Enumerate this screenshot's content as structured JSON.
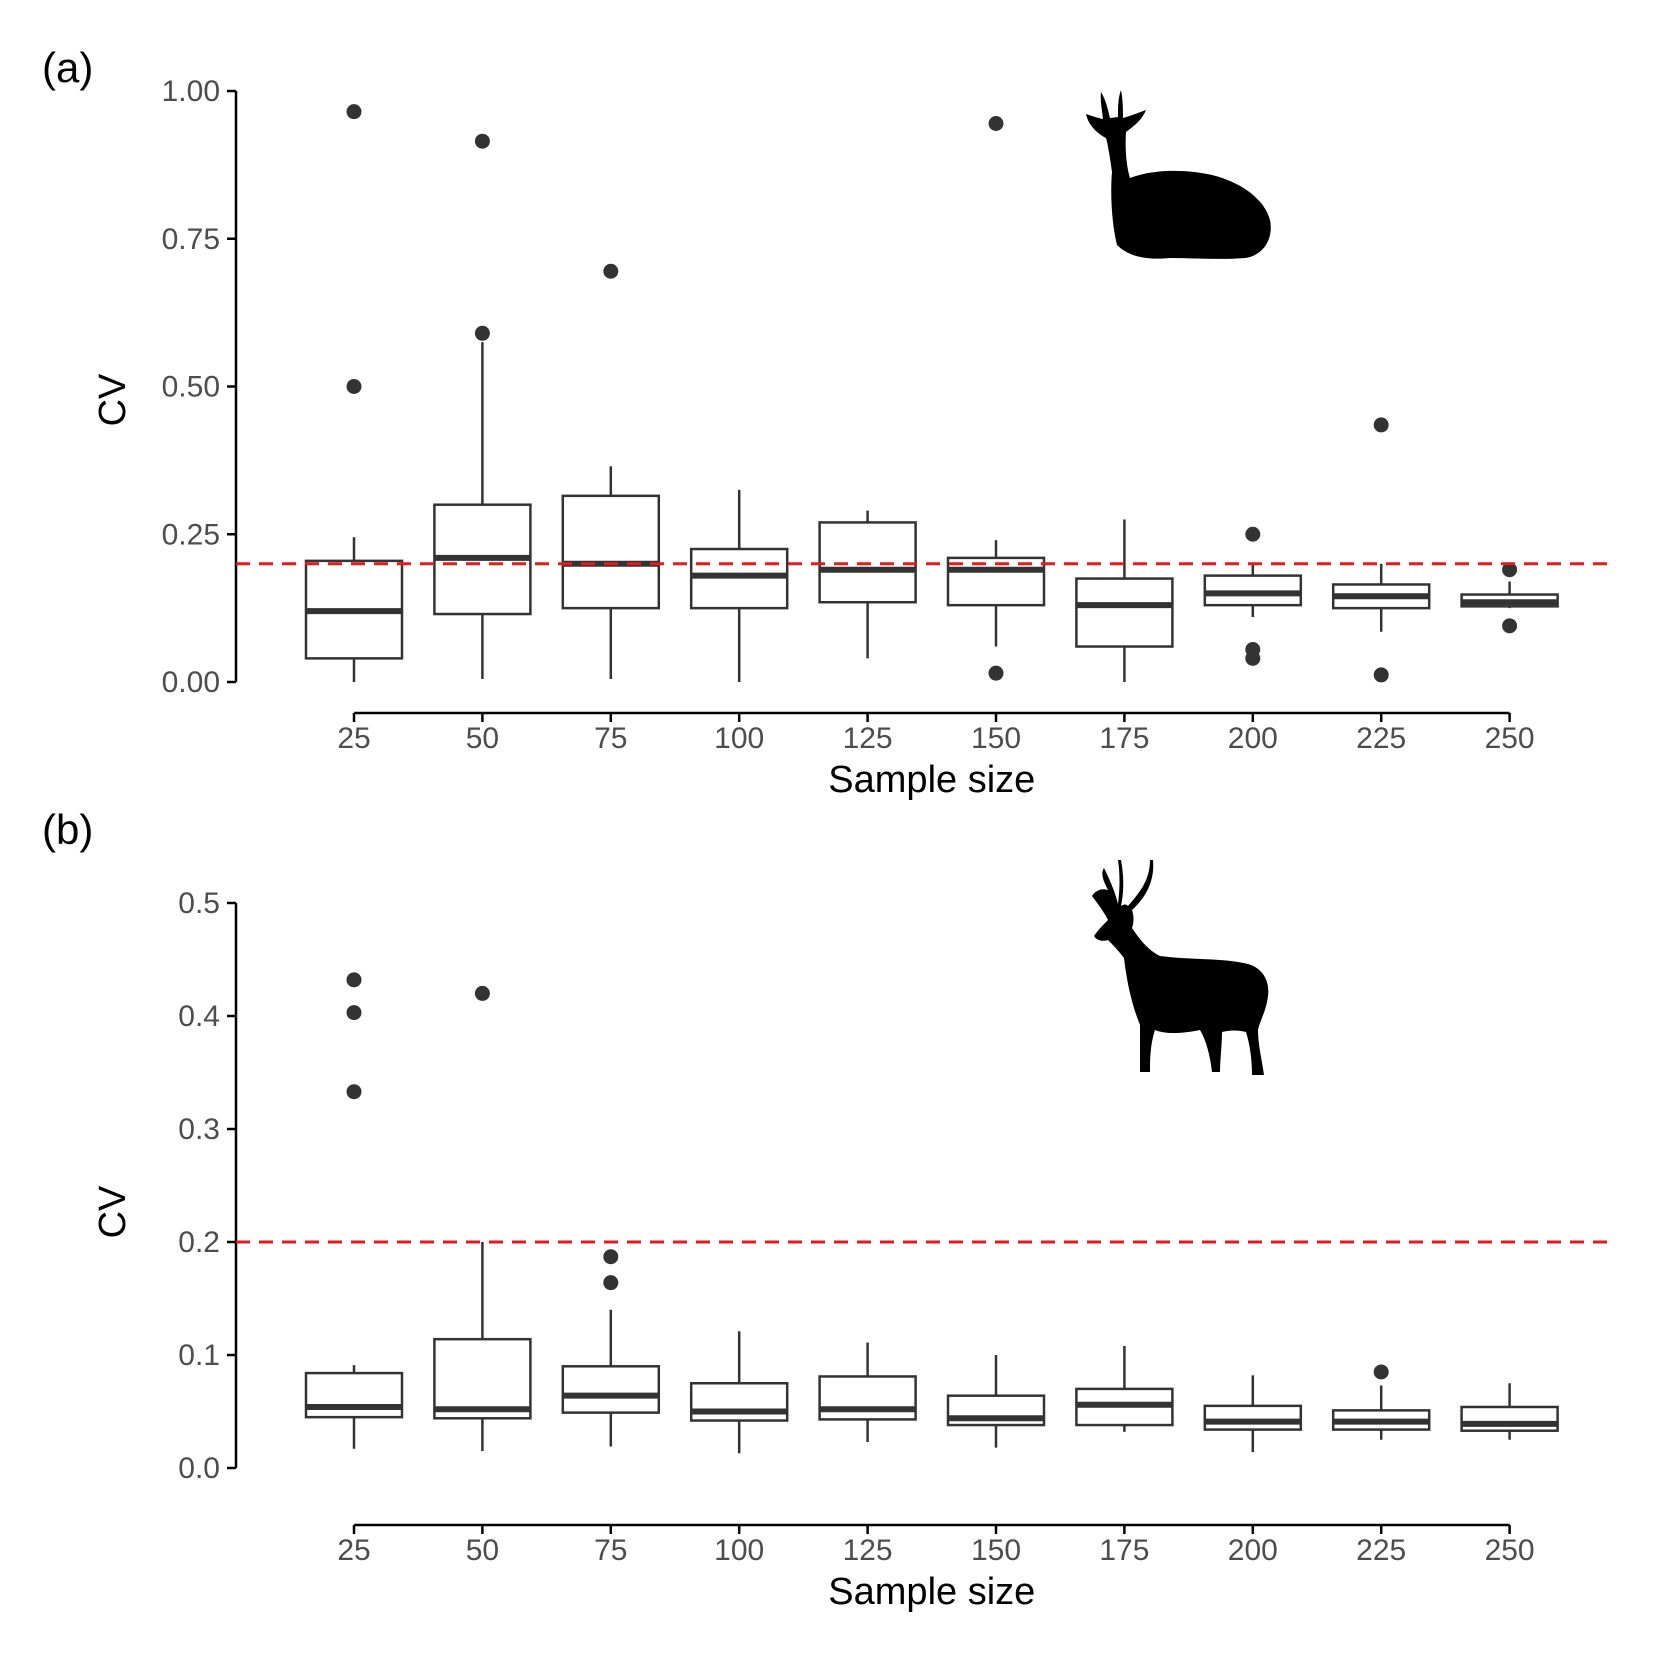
{
  "figure": {
    "panel_a_label": "(a)",
    "panel_b_label": "(b)"
  },
  "colors": {
    "box_stroke": "#333333",
    "axis": "#000000",
    "tick_text": "#4d4d4d",
    "reference_line": "#e41a1c"
  },
  "icons": {
    "panel_a": "reclining-antelope-silhouette-icon",
    "panel_b": "standing-antelope-silhouette-icon"
  },
  "chart_data": [
    {
      "type": "box",
      "panel": "(a)",
      "xlabel": "Sample size",
      "ylabel": "CV",
      "categories": [
        "25",
        "50",
        "75",
        "100",
        "125",
        "150",
        "175",
        "200",
        "225",
        "250"
      ],
      "y_ticks": [
        "0.00",
        "0.25",
        "0.50",
        "0.75",
        "1.00"
      ],
      "ylim": [
        0,
        1
      ],
      "reference_line": 0.2,
      "boxes": [
        {
          "whisker_low": 0.0,
          "q1": 0.04,
          "median": 0.12,
          "q3": 0.205,
          "whisker_high": 0.245,
          "outliers": [
            0.5,
            0.965
          ]
        },
        {
          "whisker_low": 0.005,
          "q1": 0.115,
          "median": 0.21,
          "q3": 0.3,
          "whisker_high": 0.575,
          "outliers": [
            0.59,
            0.915
          ]
        },
        {
          "whisker_low": 0.005,
          "q1": 0.125,
          "median": 0.2,
          "q3": 0.315,
          "whisker_high": 0.365,
          "outliers": [
            0.695
          ]
        },
        {
          "whisker_low": 0.0,
          "q1": 0.125,
          "median": 0.18,
          "q3": 0.225,
          "whisker_high": 0.325,
          "outliers": []
        },
        {
          "whisker_low": 0.04,
          "q1": 0.135,
          "median": 0.19,
          "q3": 0.27,
          "whisker_high": 0.29,
          "outliers": []
        },
        {
          "whisker_low": 0.06,
          "q1": 0.13,
          "median": 0.19,
          "q3": 0.21,
          "whisker_high": 0.24,
          "outliers": [
            0.015,
            0.945
          ]
        },
        {
          "whisker_low": 0.0,
          "q1": 0.06,
          "median": 0.13,
          "q3": 0.175,
          "whisker_high": 0.275,
          "outliers": []
        },
        {
          "whisker_low": 0.11,
          "q1": 0.13,
          "median": 0.15,
          "q3": 0.18,
          "whisker_high": 0.2,
          "outliers": [
            0.04,
            0.055,
            0.25
          ]
        },
        {
          "whisker_low": 0.085,
          "q1": 0.125,
          "median": 0.145,
          "q3": 0.165,
          "whisker_high": 0.2,
          "outliers": [
            0.012,
            0.435
          ]
        },
        {
          "whisker_low": 0.125,
          "q1": 0.128,
          "median": 0.135,
          "q3": 0.148,
          "whisker_high": 0.17,
          "outliers": [
            0.095,
            0.19
          ]
        }
      ]
    },
    {
      "type": "box",
      "panel": "(b)",
      "xlabel": "Sample size",
      "ylabel": "CV",
      "categories": [
        "25",
        "50",
        "75",
        "100",
        "125",
        "150",
        "175",
        "200",
        "225",
        "250"
      ],
      "y_ticks": [
        "0.0",
        "0.1",
        "0.2",
        "0.3",
        "0.4",
        "0.5"
      ],
      "ylim": [
        0,
        0.5
      ],
      "reference_line": 0.2,
      "boxes": [
        {
          "whisker_low": 0.017,
          "q1": 0.045,
          "median": 0.054,
          "q3": 0.084,
          "whisker_high": 0.091,
          "outliers": [
            0.333,
            0.403,
            0.432
          ]
        },
        {
          "whisker_low": 0.015,
          "q1": 0.044,
          "median": 0.052,
          "q3": 0.114,
          "whisker_high": 0.2,
          "outliers": [
            0.42
          ]
        },
        {
          "whisker_low": 0.019,
          "q1": 0.049,
          "median": 0.064,
          "q3": 0.09,
          "whisker_high": 0.14,
          "outliers": [
            0.164,
            0.187
          ]
        },
        {
          "whisker_low": 0.013,
          "q1": 0.042,
          "median": 0.05,
          "q3": 0.075,
          "whisker_high": 0.121,
          "outliers": []
        },
        {
          "whisker_low": 0.023,
          "q1": 0.043,
          "median": 0.052,
          "q3": 0.081,
          "whisker_high": 0.111,
          "outliers": []
        },
        {
          "whisker_low": 0.018,
          "q1": 0.038,
          "median": 0.044,
          "q3": 0.064,
          "whisker_high": 0.1,
          "outliers": []
        },
        {
          "whisker_low": 0.032,
          "q1": 0.038,
          "median": 0.056,
          "q3": 0.07,
          "whisker_high": 0.108,
          "outliers": []
        },
        {
          "whisker_low": 0.014,
          "q1": 0.034,
          "median": 0.041,
          "q3": 0.055,
          "whisker_high": 0.082,
          "outliers": []
        },
        {
          "whisker_low": 0.025,
          "q1": 0.034,
          "median": 0.041,
          "q3": 0.051,
          "whisker_high": 0.073,
          "outliers": [
            0.085
          ]
        },
        {
          "whisker_low": 0.025,
          "q1": 0.033,
          "median": 0.039,
          "q3": 0.054,
          "whisker_high": 0.075,
          "outliers": []
        }
      ]
    }
  ]
}
